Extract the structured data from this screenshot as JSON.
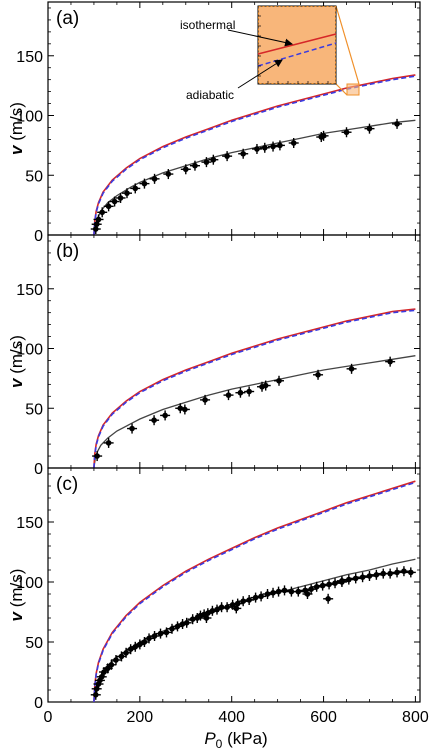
{
  "figure": {
    "xlabel_main": "P",
    "xlabel_sub": "0",
    "xlabel_unit": " (kPa)",
    "ylabel_var": "v",
    "ylabel_unit": " (m/s)",
    "x_ticks": [
      "0",
      "200",
      "400",
      "600",
      "800"
    ],
    "y_ticks": [
      "0",
      "50",
      "100",
      "150"
    ]
  },
  "colors": {
    "isothermal": "#d62728",
    "adiabatic": "#3b3be0",
    "fit": "#444444",
    "data": "#000000",
    "inset_fill": "#f8b67a",
    "inset_border": "#f0902a"
  },
  "chart_data": [
    {
      "type": "line",
      "panel_label": "(a)",
      "xlim": [
        0,
        810
      ],
      "ylim": [
        0,
        195
      ],
      "grid": false,
      "curves": {
        "isothermal": [
          [
            100,
            0
          ],
          [
            102,
            12
          ],
          [
            105,
            20
          ],
          [
            110,
            27
          ],
          [
            120,
            36
          ],
          [
            140,
            46
          ],
          [
            170,
            56
          ],
          [
            200,
            64
          ],
          [
            250,
            74
          ],
          [
            300,
            82
          ],
          [
            350,
            89
          ],
          [
            400,
            96
          ],
          [
            450,
            102
          ],
          [
            500,
            108
          ],
          [
            550,
            113
          ],
          [
            600,
            118
          ],
          [
            650,
            123
          ],
          [
            700,
            127
          ],
          [
            750,
            131
          ],
          [
            800,
            134
          ]
        ],
        "adiabatic": [
          [
            100,
            0
          ],
          [
            102,
            11
          ],
          [
            105,
            19
          ],
          [
            110,
            26
          ],
          [
            120,
            35
          ],
          [
            140,
            45
          ],
          [
            170,
            55
          ],
          [
            200,
            63
          ],
          [
            250,
            73
          ],
          [
            300,
            81
          ],
          [
            350,
            88
          ],
          [
            400,
            95
          ],
          [
            450,
            101
          ],
          [
            500,
            107
          ],
          [
            550,
            112
          ],
          [
            600,
            117
          ],
          [
            650,
            122
          ],
          [
            700,
            126
          ],
          [
            750,
            130
          ],
          [
            800,
            133
          ]
        ],
        "fit": [
          [
            100,
            0
          ],
          [
            103,
            8
          ],
          [
            108,
            14
          ],
          [
            115,
            20
          ],
          [
            130,
            27
          ],
          [
            150,
            33
          ],
          [
            180,
            40
          ],
          [
            200,
            44
          ],
          [
            250,
            52
          ],
          [
            300,
            58
          ],
          [
            350,
            64
          ],
          [
            400,
            69
          ],
          [
            450,
            73
          ],
          [
            500,
            77
          ],
          [
            550,
            81
          ],
          [
            600,
            85
          ],
          [
            650,
            88
          ],
          [
            700,
            91
          ],
          [
            750,
            94
          ],
          [
            800,
            96
          ]
        ]
      },
      "points": [
        [
          104,
          5
        ],
        [
          106,
          9
        ],
        [
          110,
          13
        ],
        [
          118,
          19
        ],
        [
          132,
          24
        ],
        [
          145,
          28
        ],
        [
          158,
          31
        ],
        [
          172,
          35
        ],
        [
          190,
          39
        ],
        [
          210,
          43
        ],
        [
          232,
          47
        ],
        [
          262,
          51
        ],
        [
          300,
          55
        ],
        [
          320,
          58
        ],
        [
          345,
          61
        ],
        [
          360,
          63
        ],
        [
          390,
          66
        ],
        [
          425,
          68
        ],
        [
          455,
          72
        ],
        [
          472,
          73
        ],
        [
          490,
          74
        ],
        [
          505,
          75
        ],
        [
          535,
          77
        ],
        [
          595,
          82
        ],
        [
          600,
          83
        ],
        [
          650,
          86
        ],
        [
          700,
          89
        ],
        [
          760,
          93
        ]
      ],
      "inset": {
        "label_isothermal": "isothermal",
        "label_adiabatic": "adiabatic"
      }
    },
    {
      "type": "line",
      "panel_label": "(b)",
      "xlim": [
        0,
        810
      ],
      "ylim": [
        0,
        195
      ],
      "grid": false,
      "curves": {
        "isothermal": [
          [
            100,
            0
          ],
          [
            102,
            12
          ],
          [
            105,
            20
          ],
          [
            110,
            27
          ],
          [
            120,
            36
          ],
          [
            140,
            46
          ],
          [
            170,
            56
          ],
          [
            200,
            64
          ],
          [
            250,
            74
          ],
          [
            300,
            82
          ],
          [
            350,
            89
          ],
          [
            400,
            96
          ],
          [
            450,
            102
          ],
          [
            500,
            108
          ],
          [
            550,
            113
          ],
          [
            600,
            118
          ],
          [
            650,
            123
          ],
          [
            700,
            127
          ],
          [
            750,
            131
          ],
          [
            800,
            133
          ]
        ],
        "adiabatic": [
          [
            100,
            0
          ],
          [
            102,
            11
          ],
          [
            105,
            19
          ],
          [
            110,
            26
          ],
          [
            120,
            35
          ],
          [
            140,
            45
          ],
          [
            170,
            55
          ],
          [
            200,
            63
          ],
          [
            250,
            73
          ],
          [
            300,
            81
          ],
          [
            350,
            88
          ],
          [
            400,
            95
          ],
          [
            450,
            101
          ],
          [
            500,
            107
          ],
          [
            550,
            112
          ],
          [
            600,
            117
          ],
          [
            650,
            122
          ],
          [
            700,
            126
          ],
          [
            750,
            130
          ],
          [
            800,
            132
          ]
        ],
        "fit": [
          [
            100,
            0
          ],
          [
            103,
            8
          ],
          [
            108,
            14
          ],
          [
            115,
            19
          ],
          [
            130,
            25
          ],
          [
            150,
            31
          ],
          [
            180,
            37
          ],
          [
            200,
            41
          ],
          [
            250,
            49
          ],
          [
            300,
            55
          ],
          [
            350,
            61
          ],
          [
            400,
            66
          ],
          [
            450,
            70
          ],
          [
            500,
            74
          ],
          [
            550,
            78
          ],
          [
            600,
            82
          ],
          [
            650,
            85
          ],
          [
            700,
            88
          ],
          [
            750,
            91
          ],
          [
            800,
            94
          ]
        ]
      },
      "points": [
        [
          107,
          10
        ],
        [
          132,
          21
        ],
        [
          183,
          33
        ],
        [
          231,
          40
        ],
        [
          255,
          44
        ],
        [
          288,
          50
        ],
        [
          298,
          49
        ],
        [
          342,
          57
        ],
        [
          393,
          61
        ],
        [
          419,
          63
        ],
        [
          438,
          64
        ],
        [
          466,
          68
        ],
        [
          474,
          69
        ],
        [
          503,
          73
        ],
        [
          588,
          78
        ],
        [
          661,
          83
        ],
        [
          745,
          89
        ]
      ]
    },
    {
      "type": "line",
      "panel_label": "(c)",
      "xlim": [
        0,
        810
      ],
      "ylim": [
        0,
        195
      ],
      "grid": false,
      "curves": {
        "isothermal": [
          [
            100,
            0
          ],
          [
            102,
            14
          ],
          [
            105,
            24
          ],
          [
            110,
            33
          ],
          [
            120,
            44
          ],
          [
            140,
            58
          ],
          [
            170,
            72
          ],
          [
            200,
            83
          ],
          [
            250,
            97
          ],
          [
            300,
            109
          ],
          [
            350,
            119
          ],
          [
            400,
            128
          ],
          [
            450,
            137
          ],
          [
            500,
            145
          ],
          [
            550,
            152
          ],
          [
            600,
            159
          ],
          [
            650,
            166
          ],
          [
            700,
            172
          ],
          [
            750,
            178
          ],
          [
            800,
            184
          ]
        ],
        "adiabatic": [
          [
            100,
            0
          ],
          [
            102,
            13
          ],
          [
            105,
            23
          ],
          [
            110,
            32
          ],
          [
            120,
            43
          ],
          [
            140,
            57
          ],
          [
            170,
            71
          ],
          [
            200,
            82
          ],
          [
            250,
            96
          ],
          [
            300,
            108
          ],
          [
            350,
            118
          ],
          [
            400,
            127
          ],
          [
            450,
            136
          ],
          [
            500,
            144
          ],
          [
            550,
            151
          ],
          [
            600,
            158
          ],
          [
            650,
            165
          ],
          [
            700,
            171
          ],
          [
            750,
            177
          ],
          [
            800,
            183
          ]
        ],
        "fit": [
          [
            100,
            0
          ],
          [
            103,
            9
          ],
          [
            108,
            16
          ],
          [
            115,
            22
          ],
          [
            130,
            30
          ],
          [
            150,
            37
          ],
          [
            180,
            45
          ],
          [
            200,
            50
          ],
          [
            250,
            59
          ],
          [
            300,
            67
          ],
          [
            350,
            74
          ],
          [
            400,
            80
          ],
          [
            450,
            86
          ],
          [
            500,
            91
          ],
          [
            550,
            96
          ],
          [
            600,
            101
          ],
          [
            650,
            106
          ],
          [
            700,
            110
          ],
          [
            750,
            115
          ],
          [
            800,
            119
          ]
        ]
      },
      "points": [
        [
          104,
          6
        ],
        [
          106,
          11
        ],
        [
          110,
          15
        ],
        [
          113,
          18
        ],
        [
          117,
          21
        ],
        [
          122,
          25
        ],
        [
          130,
          28
        ],
        [
          138,
          31
        ],
        [
          148,
          35
        ],
        [
          160,
          38
        ],
        [
          170,
          41
        ],
        [
          180,
          44
        ],
        [
          190,
          46
        ],
        [
          200,
          48
        ],
        [
          210,
          50
        ],
        [
          220,
          53
        ],
        [
          232,
          55
        ],
        [
          245,
          57
        ],
        [
          258,
          58
        ],
        [
          270,
          61
        ],
        [
          282,
          63
        ],
        [
          293,
          65
        ],
        [
          302,
          66
        ],
        [
          315,
          69
        ],
        [
          325,
          70
        ],
        [
          332,
          72
        ],
        [
          340,
          73
        ],
        [
          348,
          74
        ],
        [
          358,
          76
        ],
        [
          368,
          77
        ],
        [
          378,
          79
        ],
        [
          390,
          79
        ],
        [
          402,
          81
        ],
        [
          413,
          82
        ],
        [
          425,
          84
        ],
        [
          438,
          85
        ],
        [
          452,
          87
        ],
        [
          464,
          88
        ],
        [
          478,
          90
        ],
        [
          490,
          91
        ],
        [
          502,
          92
        ],
        [
          515,
          93
        ],
        [
          530,
          92
        ],
        [
          545,
          92
        ],
        [
          560,
          93
        ],
        [
          573,
          94
        ],
        [
          585,
          96
        ],
        [
          598,
          97
        ],
        [
          612,
          98
        ],
        [
          625,
          99
        ],
        [
          640,
          101
        ],
        [
          655,
          102
        ],
        [
          670,
          103
        ],
        [
          685,
          104
        ],
        [
          700,
          105
        ],
        [
          715,
          106
        ],
        [
          730,
          107
        ],
        [
          745,
          107
        ],
        [
          760,
          108
        ],
        [
          775,
          109
        ],
        [
          790,
          108
        ],
        [
          345,
          70
        ],
        [
          410,
          78
        ],
        [
          565,
          90
        ],
        [
          610,
          86
        ],
        [
          640,
          100
        ]
      ]
    }
  ]
}
